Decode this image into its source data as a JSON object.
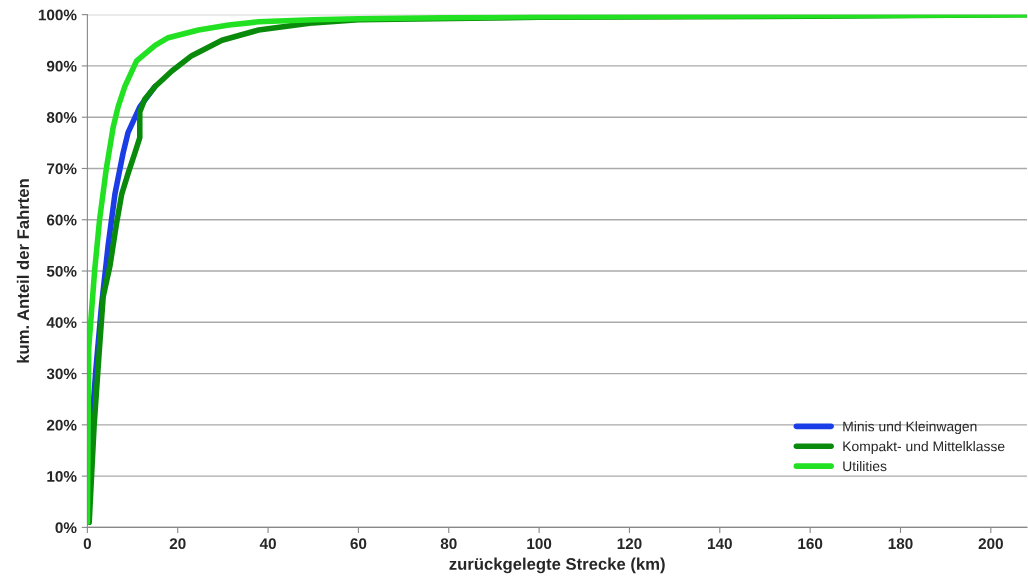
{
  "chart_data": {
    "type": "line",
    "xlabel": "zurückgelegte Strecke (km)",
    "ylabel": "kum. Anteil der Fahrten",
    "xlim": [
      0,
      208
    ],
    "xticks": [
      0,
      20,
      40,
      60,
      80,
      100,
      120,
      140,
      160,
      180,
      200
    ],
    "ylim": [
      0,
      100
    ],
    "yticks": [
      {
        "value": 0,
        "label": "0%"
      },
      {
        "value": 10,
        "label": "10%"
      },
      {
        "value": 20,
        "label": "20%"
      },
      {
        "value": 30,
        "label": "30%"
      },
      {
        "value": 40,
        "label": "40%"
      },
      {
        "value": 50,
        "label": "50%"
      },
      {
        "value": 60,
        "label": "60%"
      },
      {
        "value": 70,
        "label": "70%"
      },
      {
        "value": 80,
        "label": "80%"
      },
      {
        "value": 90,
        "label": "90%"
      },
      {
        "value": 100,
        "label": "100%"
      }
    ],
    "grid": "y",
    "legend": "bottom right",
    "marker": "none",
    "line_style": "solid",
    "series": [
      {
        "name": "Minis und Kleinwagen",
        "color": "#1a3de6",
        "x": [
          0,
          0.8,
          1.9,
          3.1,
          4.6,
          6.1,
          7.9,
          9,
          11.6,
          15
        ],
        "values": [
          1,
          18,
          31,
          43,
          55,
          65,
          73,
          77,
          82,
          86
        ]
      },
      {
        "name": "Kompakt- und Mittelklasse",
        "color": "#0a8a0a",
        "x": [
          0.4,
          1.5,
          2.6,
          3.5,
          5,
          6.4,
          7.6,
          9,
          10.5,
          11.6,
          11.6,
          12.7,
          15,
          18.7,
          23.1,
          29.8,
          37.9,
          50,
          60,
          100,
          160,
          208
        ],
        "values": [
          1,
          20,
          34,
          45,
          51,
          59,
          65,
          69,
          73,
          76,
          81,
          83.5,
          86,
          89,
          92,
          95,
          97,
          98.4,
          99,
          99.5,
          99.7,
          100
        ]
      },
      {
        "name": "Utilities",
        "color": "#22e022",
        "x": [
          0,
          0.3,
          1.6,
          2.7,
          4.2,
          5.7,
          6.8,
          8.3,
          10.9,
          15,
          17.9,
          24.6,
          31.3,
          37.9,
          50,
          60,
          100,
          160,
          208
        ],
        "values": [
          1,
          35,
          50,
          60,
          70,
          78,
          82,
          86,
          91,
          94,
          95.5,
          97,
          98,
          98.6,
          99,
          99.2,
          99.6,
          99.8,
          100
        ]
      }
    ]
  }
}
